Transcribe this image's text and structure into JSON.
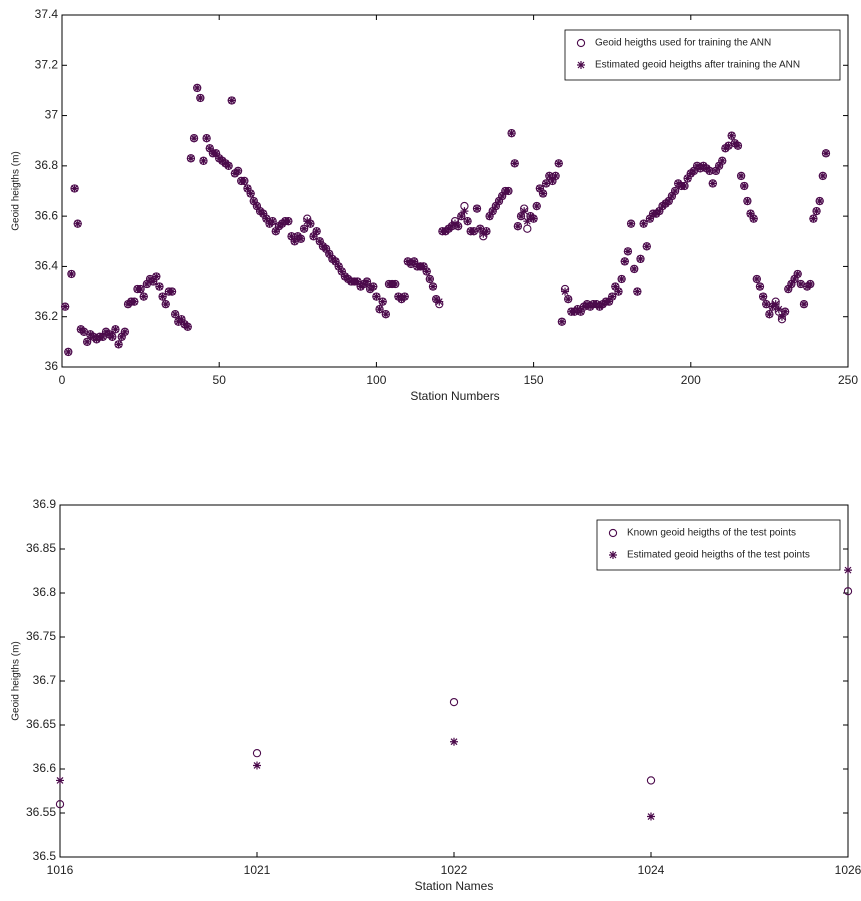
{
  "chart_data": [
    {
      "type": "scatter",
      "xlabel": "Station Numbers",
      "ylabel": "Geoid heigths (m)",
      "x": [
        1,
        2,
        3,
        4,
        5,
        6,
        7,
        8,
        9,
        10,
        11,
        12,
        13,
        14,
        15,
        16,
        17,
        18,
        19,
        20,
        21,
        22,
        23,
        24,
        25,
        26,
        27,
        28,
        29,
        30,
        31,
        32,
        33,
        34,
        35,
        36,
        37,
        38,
        39,
        40,
        41,
        42,
        43,
        44,
        45,
        46,
        47,
        48,
        49,
        50,
        51,
        52,
        53,
        54,
        55,
        56,
        57,
        58,
        59,
        60,
        61,
        62,
        63,
        64,
        65,
        66,
        67,
        68,
        69,
        70,
        71,
        72,
        73,
        74,
        75,
        76,
        77,
        78,
        79,
        80,
        81,
        82,
        83,
        84,
        85,
        86,
        87,
        88,
        89,
        90,
        91,
        92,
        93,
        94,
        95,
        96,
        97,
        98,
        99,
        100,
        101,
        102,
        103,
        104,
        105,
        106,
        107,
        108,
        109,
        110,
        111,
        112,
        113,
        114,
        115,
        116,
        117,
        118,
        119,
        120,
        121,
        122,
        123,
        124,
        125,
        126,
        127,
        128,
        129,
        130,
        131,
        132,
        133,
        134,
        135,
        136,
        137,
        138,
        139,
        140,
        141,
        142,
        143,
        144,
        145,
        146,
        147,
        148,
        149,
        150,
        151,
        152,
        153,
        154,
        155,
        156,
        157,
        158,
        159,
        160,
        161,
        162,
        163,
        164,
        165,
        166,
        167,
        168,
        169,
        170,
        171,
        172,
        173,
        174,
        175,
        176,
        177,
        178,
        179,
        180,
        181,
        182,
        183,
        184,
        185,
        186,
        187,
        188,
        189,
        190,
        191,
        192,
        193,
        194,
        195,
        196,
        197,
        198,
        199,
        200,
        201,
        202,
        203,
        204,
        205,
        206,
        207,
        208,
        209,
        210,
        211,
        212,
        213,
        214,
        215,
        216,
        217,
        218,
        219,
        220,
        221,
        222,
        223,
        224,
        225,
        226,
        227,
        228,
        229,
        230,
        231,
        232,
        233,
        234,
        235,
        236,
        237,
        238,
        239,
        240,
        241,
        242,
        243
      ],
      "series": [
        {
          "name": "Geoid heigths used for training the ANN",
          "color": "#4b0a4b",
          "marker": "o",
          "values": [
            36.24,
            36.06,
            36.37,
            36.71,
            36.57,
            36.15,
            36.14,
            36.1,
            36.13,
            36.12,
            36.11,
            36.12,
            36.12,
            36.14,
            36.13,
            36.12,
            36.15,
            36.09,
            36.12,
            36.14,
            36.25,
            36.26,
            36.26,
            36.31,
            36.31,
            36.28,
            36.33,
            36.35,
            36.34,
            36.36,
            36.32,
            36.28,
            36.25,
            36.3,
            36.3,
            36.21,
            36.18,
            36.19,
            36.17,
            36.16,
            36.83,
            36.91,
            37.11,
            37.07,
            36.82,
            36.91,
            36.87,
            36.85,
            36.85,
            36.83,
            36.82,
            36.81,
            36.8,
            37.06,
            36.77,
            36.78,
            36.74,
            36.74,
            36.71,
            36.69,
            36.66,
            36.64,
            36.62,
            36.61,
            36.59,
            36.57,
            36.58,
            36.54,
            36.56,
            36.57,
            36.58,
            36.58,
            36.52,
            36.5,
            36.52,
            36.51,
            36.55,
            36.59,
            36.57,
            36.52,
            36.54,
            36.5,
            36.48,
            36.47,
            36.45,
            36.43,
            36.42,
            36.4,
            36.38,
            36.36,
            36.35,
            36.34,
            36.34,
            36.34,
            36.32,
            36.33,
            36.34,
            36.31,
            36.32,
            36.28,
            36.23,
            36.26,
            36.21,
            36.33,
            36.33,
            36.33,
            36.28,
            36.27,
            36.28,
            36.42,
            36.41,
            36.42,
            36.4,
            36.4,
            36.4,
            36.38,
            36.35,
            36.32,
            36.27,
            36.25,
            36.54,
            36.54,
            36.55,
            36.56,
            36.58,
            36.56,
            36.6,
            36.64,
            36.58,
            36.54,
            36.54,
            36.63,
            36.55,
            36.52,
            36.54,
            36.6,
            36.62,
            36.64,
            36.66,
            36.68,
            36.7,
            36.7,
            36.93,
            36.81,
            36.56,
            36.6,
            36.63,
            36.55,
            36.6,
            36.59,
            36.64,
            36.71,
            36.69,
            36.73,
            36.76,
            36.74,
            36.76,
            36.81,
            36.18,
            36.31,
            36.27,
            36.22,
            36.22,
            36.23,
            36.22,
            36.24,
            36.25,
            36.24,
            36.25,
            36.25,
            36.24,
            36.25,
            36.26,
            36.26,
            36.28,
            36.32,
            36.3,
            36.35,
            36.42,
            36.46,
            36.57,
            36.39,
            36.3,
            36.43,
            36.57,
            36.48,
            36.59,
            36.61,
            36.61,
            36.62,
            36.64,
            36.65,
            36.66,
            36.68,
            36.7,
            36.73,
            36.72,
            36.72,
            36.75,
            36.77,
            36.78,
            36.8,
            36.79,
            36.8,
            36.79,
            36.78,
            36.73,
            36.78,
            36.8,
            36.82,
            36.87,
            36.88,
            36.92,
            36.89,
            36.88,
            36.76,
            36.72,
            36.66,
            36.61,
            36.59,
            36.35,
            36.32,
            36.28,
            36.25,
            36.21,
            36.24,
            36.26,
            36.22,
            36.19,
            36.22,
            36.31,
            36.33,
            36.35,
            36.37,
            36.33,
            36.25,
            36.32,
            36.33,
            36.59,
            36.62,
            36.66,
            36.76,
            36.85
          ]
        },
        {
          "name": "Estimated geoid heigths after training the ANN",
          "color": "#4b0a4b",
          "marker": "*",
          "values": [
            36.24,
            36.06,
            36.37,
            36.71,
            36.57,
            36.15,
            36.14,
            36.1,
            36.13,
            36.12,
            36.11,
            36.12,
            36.12,
            36.14,
            36.13,
            36.12,
            36.15,
            36.09,
            36.12,
            36.14,
            36.25,
            36.26,
            36.26,
            36.31,
            36.31,
            36.28,
            36.33,
            36.35,
            36.34,
            36.36,
            36.32,
            36.28,
            36.25,
            36.3,
            36.3,
            36.21,
            36.18,
            36.19,
            36.17,
            36.16,
            36.83,
            36.91,
            37.11,
            37.07,
            36.82,
            36.91,
            36.87,
            36.85,
            36.85,
            36.83,
            36.82,
            36.81,
            36.8,
            37.06,
            36.77,
            36.78,
            36.74,
            36.74,
            36.71,
            36.69,
            36.66,
            36.64,
            36.62,
            36.61,
            36.59,
            36.57,
            36.58,
            36.54,
            36.56,
            36.57,
            36.58,
            36.58,
            36.52,
            36.5,
            36.52,
            36.51,
            36.55,
            36.58,
            36.57,
            36.52,
            36.54,
            36.5,
            36.48,
            36.47,
            36.45,
            36.43,
            36.42,
            36.4,
            36.38,
            36.36,
            36.35,
            36.34,
            36.34,
            36.34,
            36.32,
            36.33,
            36.34,
            36.31,
            36.32,
            36.28,
            36.23,
            36.26,
            36.21,
            36.33,
            36.33,
            36.33,
            36.28,
            36.27,
            36.28,
            36.42,
            36.41,
            36.42,
            36.4,
            36.4,
            36.4,
            36.38,
            36.35,
            36.32,
            36.27,
            36.26,
            36.54,
            36.54,
            36.55,
            36.56,
            36.57,
            36.56,
            36.6,
            36.62,
            36.58,
            36.54,
            36.54,
            36.63,
            36.55,
            36.53,
            36.54,
            36.6,
            36.62,
            36.64,
            36.66,
            36.68,
            36.7,
            36.7,
            36.93,
            36.81,
            36.56,
            36.6,
            36.62,
            36.58,
            36.6,
            36.59,
            36.64,
            36.71,
            36.69,
            36.73,
            36.76,
            36.74,
            36.76,
            36.81,
            36.18,
            36.3,
            36.27,
            36.22,
            36.22,
            36.23,
            36.22,
            36.24,
            36.25,
            36.24,
            36.25,
            36.25,
            36.24,
            36.25,
            36.26,
            36.26,
            36.28,
            36.32,
            36.3,
            36.35,
            36.42,
            36.46,
            36.57,
            36.39,
            36.3,
            36.43,
            36.57,
            36.48,
            36.59,
            36.61,
            36.61,
            36.62,
            36.64,
            36.65,
            36.66,
            36.68,
            36.7,
            36.73,
            36.72,
            36.72,
            36.75,
            36.77,
            36.78,
            36.8,
            36.79,
            36.8,
            36.79,
            36.78,
            36.73,
            36.78,
            36.8,
            36.82,
            36.87,
            36.88,
            36.92,
            36.89,
            36.88,
            36.76,
            36.72,
            36.66,
            36.61,
            36.59,
            36.35,
            36.32,
            36.28,
            36.25,
            36.21,
            36.24,
            36.25,
            36.23,
            36.2,
            36.22,
            36.31,
            36.33,
            36.35,
            36.37,
            36.33,
            36.25,
            36.32,
            36.33,
            36.59,
            36.62,
            36.66,
            36.76,
            36.85
          ]
        }
      ],
      "xlim": [
        0,
        250
      ],
      "xticks": [
        0,
        50,
        100,
        150,
        200,
        250
      ],
      "ylim": [
        36,
        37.4
      ],
      "yticks": [
        36,
        36.2,
        36.4,
        36.6,
        36.8,
        37,
        37.2,
        37.4
      ],
      "legend": "upper right"
    },
    {
      "type": "scatter",
      "xlabel": "Station Names",
      "ylabel": "Geoid heigths (m)",
      "categories": [
        "1016",
        "1021",
        "1022",
        "1024",
        "1026"
      ],
      "series": [
        {
          "name": "Known geoid heigths of the test points",
          "color": "#4b0a4b",
          "marker": "o",
          "values": [
            36.56,
            36.618,
            36.676,
            36.587,
            36.802
          ]
        },
        {
          "name": "Estimated geoid heigths of the test points",
          "color": "#4b0a4b",
          "marker": "*",
          "values": [
            36.587,
            36.604,
            36.631,
            36.546,
            36.826
          ]
        }
      ],
      "ylim": [
        36.5,
        36.9
      ],
      "yticks": [
        36.5,
        36.55,
        36.6,
        36.65,
        36.7,
        36.75,
        36.8,
        36.85,
        36.9
      ],
      "legend": "upper right"
    }
  ]
}
